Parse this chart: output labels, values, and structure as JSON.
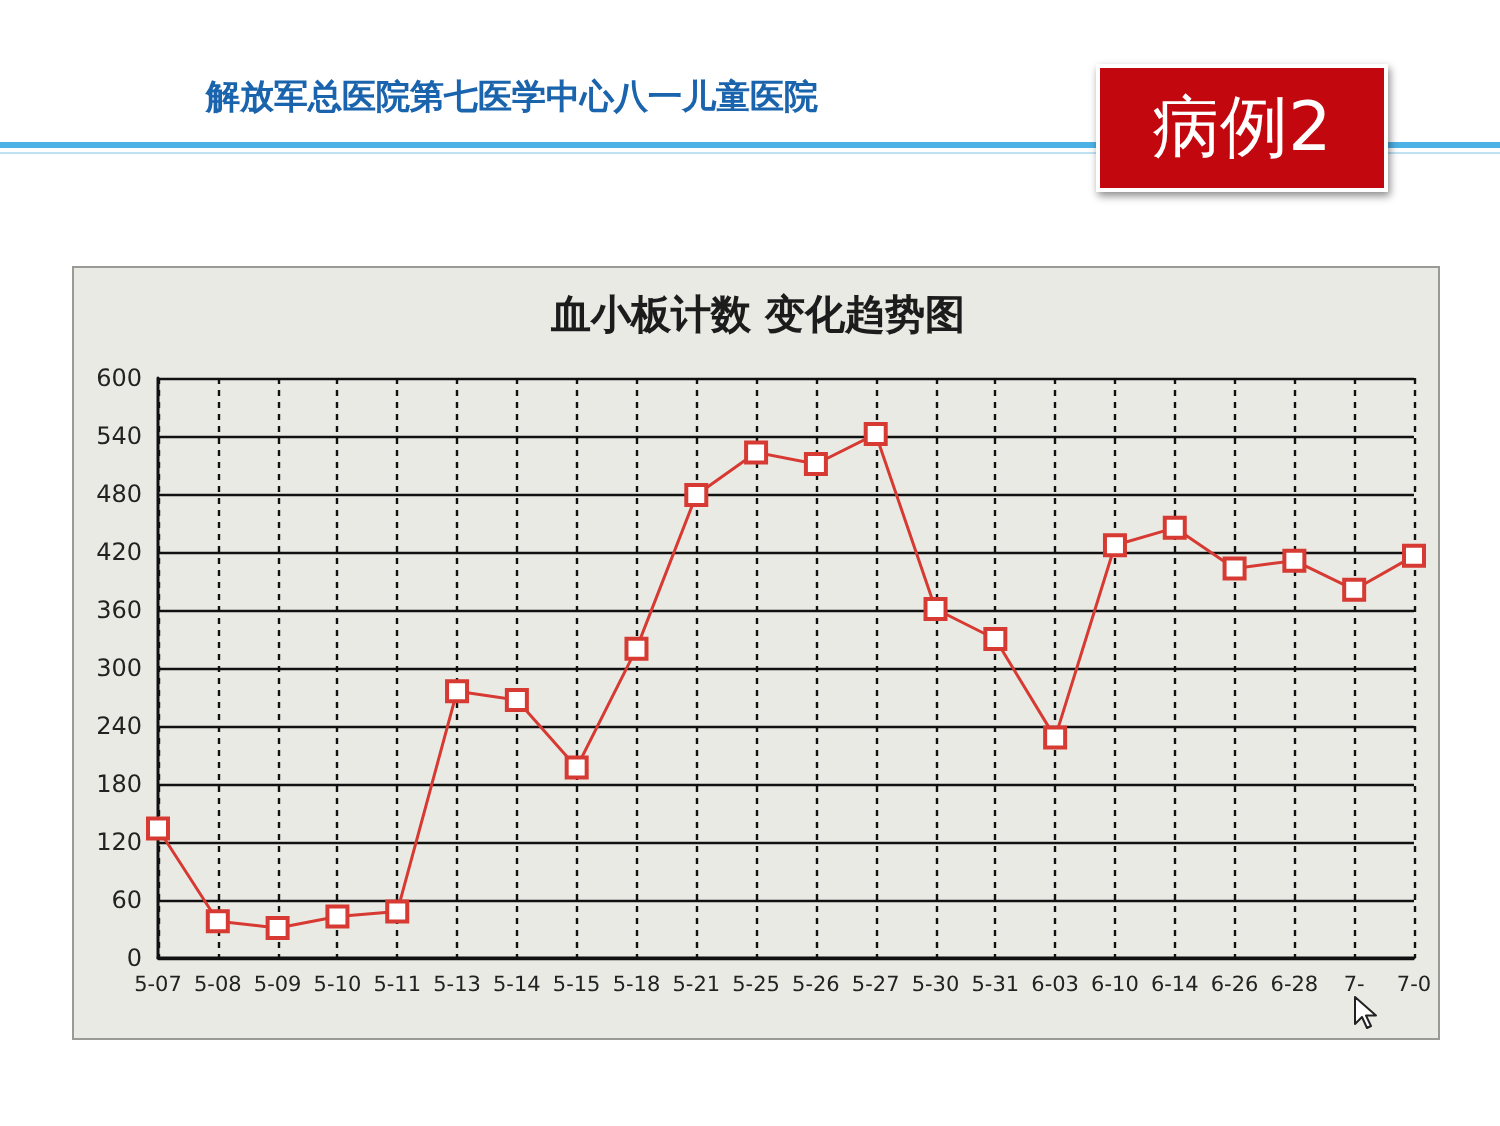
{
  "chart_data": {
    "type": "line",
    "title": "血小板计数 变化趋势图",
    "annotations": [
      "解放军总医院第七医学中心八一儿童医院",
      "病例2"
    ],
    "categories": [
      "5-07",
      "5-08",
      "5-09",
      "5-10",
      "5-11",
      "5-13",
      "5-14",
      "5-15",
      "5-18",
      "5-21",
      "5-25",
      "5-26",
      "5-27",
      "5-30",
      "5-31",
      "6-03",
      "6-10",
      "6-14",
      "6-26",
      "6-28",
      "7-",
      "7-0"
    ],
    "series": [
      {
        "color": "#d63a32",
        "values": [
          134,
          38,
          31,
          43,
          48,
          276,
          267,
          197,
          320,
          479,
          523,
          511,
          542,
          361,
          330,
          228,
          427,
          445,
          403,
          411,
          381,
          416
        ]
      }
    ],
    "ylim": [
      0,
      600
    ],
    "yticks": [
      0,
      60,
      120,
      180,
      240,
      300,
      360,
      420,
      480,
      540,
      600
    ],
    "grid": true,
    "marker": "square",
    "line_style": "solid"
  }
}
